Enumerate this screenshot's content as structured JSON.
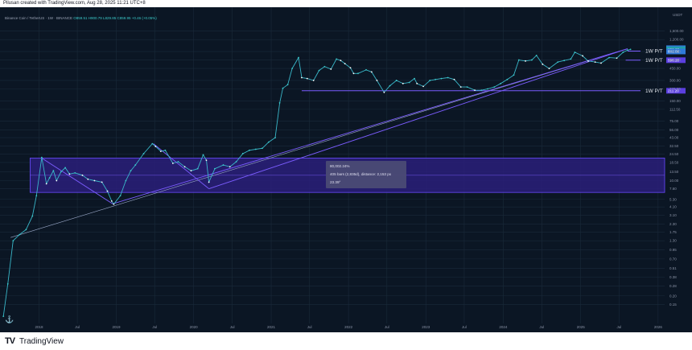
{
  "header": {
    "created_line": "Pilusan created with TradingView.com, Aug 28, 2025 11:21 UTC+8"
  },
  "info": {
    "symbol": "Binance Coin / TetherUS · 1W · BINANCE",
    "ohlc": "O859.51 H900.79 L829.85 C859.95 +0.46 (+0.05%)"
  },
  "currency": "USDT",
  "footer": {
    "logo": "TV",
    "brand": "TradingView"
  },
  "measure": {
    "pct": "80,002.24%",
    "bars": "405 bars (2,835d), distance: 2,153 px",
    "angle": "23.39°"
  },
  "colors": {
    "line": "#7b5cff",
    "zone": "#2a1f7a",
    "up": "#3bc9c9",
    "down": "#ffffff"
  },
  "chart_data": {
    "type": "line",
    "title": "Binance Coin / TetherUS · 1W · BINANCE",
    "xlabel": "",
    "ylabel": "",
    "y_scale": "log",
    "ylim": [
      0.09,
      2200
    ],
    "xlim": [
      "2017-07-01",
      "2026-02-01"
    ],
    "x_ticks": [
      {
        "date": "2018-01-01",
        "label": "2018"
      },
      {
        "date": "2018-07-01",
        "label": "Jul"
      },
      {
        "date": "2019-01-01",
        "label": "2019"
      },
      {
        "date": "2019-07-01",
        "label": "Jul"
      },
      {
        "date": "2020-01-01",
        "label": "2020"
      },
      {
        "date": "2020-07-01",
        "label": "Jul"
      },
      {
        "date": "2021-01-01",
        "label": "2021"
      },
      {
        "date": "2021-07-01",
        "label": "Jul"
      },
      {
        "date": "2022-01-01",
        "label": "2022"
      },
      {
        "date": "2022-07-01",
        "label": "Jul"
      },
      {
        "date": "2023-01-01",
        "label": "2023"
      },
      {
        "date": "2023-07-01",
        "label": "Jul"
      },
      {
        "date": "2024-01-01",
        "label": "2024"
      },
      {
        "date": "2024-07-01",
        "label": "Jul"
      },
      {
        "date": "2025-01-01",
        "label": "2025"
      },
      {
        "date": "2025-07-01",
        "label": "Jul"
      },
      {
        "date": "2026-01-01",
        "label": "2026"
      }
    ],
    "y_ticks": [
      {
        "value": 1600,
        "label": "1,600.00"
      },
      {
        "value": 1200,
        "label": "1,200.00"
      },
      {
        "value": 800,
        "label": "800.00"
      },
      {
        "value": 600,
        "label": "600.00"
      },
      {
        "value": 450,
        "label": "450.00"
      },
      {
        "value": 300,
        "label": "300.00"
      },
      {
        "value": 225,
        "label": "225.00"
      },
      {
        "value": 150,
        "label": "150.00"
      },
      {
        "value": 112.5,
        "label": "112.50"
      },
      {
        "value": 75,
        "label": "75.00"
      },
      {
        "value": 56,
        "label": "56.00"
      },
      {
        "value": 43,
        "label": "43.00"
      },
      {
        "value": 32.5,
        "label": "32.50"
      },
      {
        "value": 24.5,
        "label": "24.50"
      },
      {
        "value": 18.5,
        "label": "18.50"
      },
      {
        "value": 13.5,
        "label": "13.50"
      },
      {
        "value": 10,
        "label": "10.00"
      },
      {
        "value": 7.6,
        "label": "7.60"
      },
      {
        "value": 5.3,
        "label": "5.30"
      },
      {
        "value": 4.1,
        "label": "4.10"
      },
      {
        "value": 3.1,
        "label": "3.10"
      },
      {
        "value": 2.3,
        "label": "2.30"
      },
      {
        "value": 1.75,
        "label": "1.75"
      },
      {
        "value": 1.3,
        "label": "1.30"
      },
      {
        "value": 0.95,
        "label": "0.95"
      },
      {
        "value": 0.7,
        "label": "0.70"
      },
      {
        "value": 0.51,
        "label": "0.51"
      },
      {
        "value": 0.38,
        "label": "0.38"
      },
      {
        "value": 0.28,
        "label": "0.28"
      },
      {
        "value": 0.2,
        "label": "0.20"
      },
      {
        "value": 0.15,
        "label": "0.15"
      }
    ],
    "series": [
      {
        "points": [
          [
            "2017-07-17",
            0.1
          ],
          [
            "2017-08-07",
            0.3
          ],
          [
            "2017-09-01",
            1.3
          ],
          [
            "2017-10-01",
            1.6
          ],
          [
            "2017-11-01",
            1.9
          ],
          [
            "2017-12-01",
            3.0
          ],
          [
            "2017-12-20",
            6.0
          ],
          [
            "2018-01-14",
            22.0
          ],
          [
            "2018-02-05",
            9.0
          ],
          [
            "2018-02-20",
            11.0
          ],
          [
            "2018-03-10",
            14.0
          ],
          [
            "2018-03-25",
            10.0
          ],
          [
            "2018-04-15",
            13.5
          ],
          [
            "2018-05-05",
            15.5
          ],
          [
            "2018-05-25",
            12.5
          ],
          [
            "2018-06-20",
            13.0
          ],
          [
            "2018-07-25",
            12.0
          ],
          [
            "2018-08-20",
            10.5
          ],
          [
            "2018-09-20",
            10.0
          ],
          [
            "2018-10-25",
            9.5
          ],
          [
            "2018-11-20",
            7.0
          ],
          [
            "2018-12-10",
            5.0
          ],
          [
            "2018-12-20",
            4.5
          ],
          [
            "2019-01-20",
            6.0
          ],
          [
            "2019-02-15",
            10.0
          ],
          [
            "2019-03-10",
            14.0
          ],
          [
            "2019-04-01",
            17.0
          ],
          [
            "2019-05-10",
            25.0
          ],
          [
            "2019-06-20",
            35.0
          ],
          [
            "2019-07-05",
            32.0
          ],
          [
            "2019-07-30",
            27.0
          ],
          [
            "2019-08-20",
            28.0
          ],
          [
            "2019-09-25",
            18.0
          ],
          [
            "2019-10-20",
            19.0
          ],
          [
            "2019-11-20",
            16.0
          ],
          [
            "2019-12-20",
            14.0
          ],
          [
            "2020-01-20",
            15.0
          ],
          [
            "2020-02-15",
            24.0
          ],
          [
            "2020-03-01",
            20.0
          ],
          [
            "2020-03-13",
            9.5
          ],
          [
            "2020-04-10",
            15.0
          ],
          [
            "2020-05-20",
            17.0
          ],
          [
            "2020-06-20",
            16.0
          ],
          [
            "2020-07-20",
            19.0
          ],
          [
            "2020-08-20",
            25.0
          ],
          [
            "2020-09-20",
            28.0
          ],
          [
            "2020-10-20",
            29.0
          ],
          [
            "2020-11-20",
            30.0
          ],
          [
            "2020-12-20",
            37.0
          ],
          [
            "2021-01-20",
            43.0
          ],
          [
            "2021-02-10",
            140.0
          ],
          [
            "2021-02-25",
            230.0
          ],
          [
            "2021-03-20",
            260.0
          ],
          [
            "2021-04-10",
            450.0
          ],
          [
            "2021-05-10",
            650.0
          ],
          [
            "2021-05-25",
            330.0
          ],
          [
            "2021-06-20",
            320.0
          ],
          [
            "2021-07-20",
            300.0
          ],
          [
            "2021-08-15",
            420.0
          ],
          [
            "2021-09-10",
            480.0
          ],
          [
            "2021-10-10",
            440.0
          ],
          [
            "2021-11-05",
            620.0
          ],
          [
            "2021-11-25",
            590.0
          ],
          [
            "2021-12-15",
            530.0
          ],
          [
            "2022-01-10",
            460.0
          ],
          [
            "2022-01-25",
            380.0
          ],
          [
            "2022-02-15",
            380.0
          ],
          [
            "2022-03-25",
            430.0
          ],
          [
            "2022-04-20",
            400.0
          ],
          [
            "2022-05-15",
            300.0
          ],
          [
            "2022-06-18",
            200.0
          ],
          [
            "2022-07-15",
            250.0
          ],
          [
            "2022-08-15",
            300.0
          ],
          [
            "2022-09-15",
            270.0
          ],
          [
            "2022-10-15",
            280.0
          ],
          [
            "2022-11-08",
            320.0
          ],
          [
            "2022-11-20",
            270.0
          ],
          [
            "2022-12-20",
            245.0
          ],
          [
            "2023-01-20",
            300.0
          ],
          [
            "2023-02-15",
            310.0
          ],
          [
            "2023-03-15",
            320.0
          ],
          [
            "2023-04-15",
            330.0
          ],
          [
            "2023-05-15",
            310.0
          ],
          [
            "2023-06-15",
            240.0
          ],
          [
            "2023-07-15",
            240.0
          ],
          [
            "2023-08-20",
            215.0
          ],
          [
            "2023-09-20",
            215.0
          ],
          [
            "2023-10-20",
            225.0
          ],
          [
            "2023-11-20",
            240.0
          ],
          [
            "2023-12-20",
            270.0
          ],
          [
            "2024-01-20",
            310.0
          ],
          [
            "2024-02-20",
            360.0
          ],
          [
            "2024-03-15",
            600.0
          ],
          [
            "2024-04-15",
            580.0
          ],
          [
            "2024-05-15",
            600.0
          ],
          [
            "2024-06-06",
            700.0
          ],
          [
            "2024-07-05",
            520.0
          ],
          [
            "2024-08-05",
            450.0
          ],
          [
            "2024-09-15",
            560.0
          ],
          [
            "2024-10-15",
            590.0
          ],
          [
            "2024-11-15",
            620.0
          ],
          [
            "2024-12-04",
            780.0
          ],
          [
            "2025-01-10",
            690.0
          ],
          [
            "2025-02-05",
            580.0
          ],
          [
            "2025-03-10",
            560.0
          ],
          [
            "2025-04-07",
            540.0
          ],
          [
            "2025-05-15",
            650.0
          ],
          [
            "2025-06-20",
            640.0
          ],
          [
            "2025-07-20",
            780.0
          ],
          [
            "2025-08-10",
            840.0
          ],
          [
            "2025-08-24",
            860.0
          ]
        ]
      }
    ],
    "levels": [
      {
        "name": "1W P/T",
        "value": 811.0,
        "tag": "811.00"
      },
      {
        "name": "1W P/T",
        "value": 596.2,
        "tag": "596.20"
      },
      {
        "name": "1W P/T",
        "value": 211.2,
        "tag": "211.20"
      }
    ],
    "price_tags": [
      {
        "value": 895.0,
        "tag": "895.00"
      },
      {
        "value": 859.95,
        "tag": "859.95"
      },
      {
        "value": 802.0,
        "tag": "802.00"
      }
    ],
    "zone": {
      "from": "2017-11-20",
      "to": "2026-02-01",
      "low": 6.7,
      "high": 21.5
    },
    "trendlines": [
      {
        "points": [
          [
            "2017-08-20",
            1.45
          ],
          [
            "2025-08-10",
            880.0
          ]
        ]
      },
      {
        "points": [
          [
            "2018-12-15",
            4.55
          ],
          [
            "2025-08-10",
            880.0
          ]
        ]
      },
      {
        "points": [
          [
            "2020-03-13",
            7.6
          ],
          [
            "2025-08-10",
            880.0
          ]
        ]
      },
      {
        "points": [
          [
            "2018-01-14",
            21.5
          ],
          [
            "2018-12-15",
            4.55
          ]
        ]
      },
      {
        "points": [
          [
            "2019-06-25",
            35.0
          ],
          [
            "2020-03-13",
            7.6
          ]
        ]
      }
    ]
  }
}
